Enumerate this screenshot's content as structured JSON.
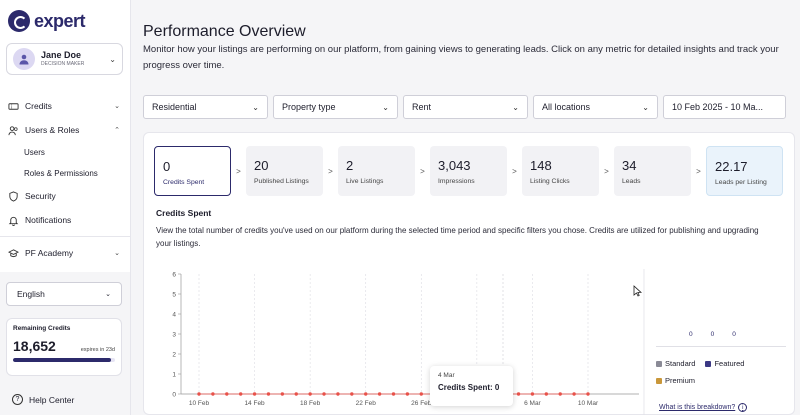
{
  "sidebar": {
    "logo_text": "expert",
    "user": {
      "name": "Jane Doe",
      "role": "DECISION MAKER"
    },
    "nav": [
      {
        "label": "Credits",
        "icon": "ticket-icon",
        "chevron": "down"
      },
      {
        "label": "Users & Roles",
        "icon": "users-icon",
        "chevron": "up"
      },
      {
        "label": "Users",
        "sub": true
      },
      {
        "label": "Roles & Permissions",
        "sub": true
      },
      {
        "label": "Security",
        "icon": "shield-icon"
      },
      {
        "label": "Notifications",
        "icon": "bell-icon"
      },
      {
        "label": "PF Academy",
        "icon": "graduation-icon",
        "chevron": "down"
      }
    ],
    "language": "English",
    "credits": {
      "title": "Remaining Credits",
      "value": "18,652",
      "expiry": "expires in 23d",
      "progress": 0.96
    },
    "help_label": "Help Center"
  },
  "main": {
    "title": "Performance Overview",
    "description": "Monitor how your listings are performing on our platform, from gaining views to generating leads. Click on any metric for detailed insights and track your progress over time.",
    "filters": [
      {
        "label": "Residential",
        "width": 125
      },
      {
        "label": "Property type",
        "width": 125
      },
      {
        "label": "Rent",
        "width": 125
      },
      {
        "label": "All locations",
        "width": 125
      },
      {
        "label": "10 Feb 2025 - 10 Ma...",
        "width": 125
      }
    ],
    "metrics": [
      {
        "value": "0",
        "label": "Credits Spent",
        "state": "active"
      },
      {
        "value": "20",
        "label": "Published Listings"
      },
      {
        "value": "2",
        "label": "Live Listings"
      },
      {
        "value": "3,043",
        "label": "Impressions"
      },
      {
        "value": "148",
        "label": "Listing Clicks"
      },
      {
        "value": "34",
        "label": "Leads"
      },
      {
        "value": "22.17",
        "label": "Leads per Listing",
        "state": "accent"
      }
    ],
    "arrow": ">",
    "section_title": "Credits Spent",
    "section_description": "View the total number of credits you've used on our platform during the selected time period and specific filters you chose. Credits are utilized for publishing and upgrading your listings.",
    "legend": {
      "counts": [
        "0",
        "0",
        "0"
      ],
      "items": [
        {
          "label": "Standard",
          "color": "#8a8a96"
        },
        {
          "label": "Featured",
          "color": "#3b3884"
        },
        {
          "label": "Premium",
          "color": "#c9973a"
        }
      ],
      "breakdown_link": "What is this breakdown?"
    },
    "tooltip": {
      "date": "4 Mar",
      "text": "Credits Spent: 0"
    }
  },
  "chart_data": {
    "type": "line",
    "x_tick_labels": [
      "10 Feb",
      "14 Feb",
      "18 Feb",
      "22 Feb",
      "26 Feb",
      "2 Mar",
      "6 Mar",
      "10 Mar"
    ],
    "y_ticks": [
      0,
      1,
      2,
      3,
      4,
      5,
      6
    ],
    "ylim": [
      0,
      6
    ],
    "series": [
      {
        "values": [
          0,
          0,
          0,
          0,
          0,
          0,
          0,
          0,
          0,
          0,
          0,
          0,
          0,
          0,
          0,
          0,
          0,
          0,
          0,
          0,
          0,
          0,
          0,
          0,
          0,
          0,
          0,
          0,
          0
        ],
        "color": "#e8524a"
      }
    ],
    "grid": true
  }
}
